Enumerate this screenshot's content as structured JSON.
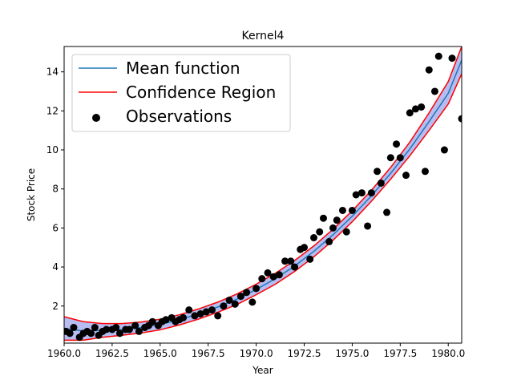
{
  "chart_data": {
    "type": "scatter",
    "title": "Kernel4",
    "xlabel": "Year",
    "ylabel": "Stock Price",
    "xlim": [
      1960.0,
      1980.7
    ],
    "ylim": [
      0.1,
      15.3
    ],
    "xticks": [
      1960.0,
      1962.5,
      1965.0,
      1967.5,
      1970.0,
      1972.5,
      1975.0,
      1977.5,
      1980.0
    ],
    "xtick_labels": [
      "1960.0",
      "1962.5",
      "1965.0",
      "1967.5",
      "1970.0",
      "1972.5",
      "1975.0",
      "1977.5",
      "1980.0"
    ],
    "yticks": [
      2,
      4,
      6,
      8,
      10,
      12,
      14
    ],
    "ytick_labels": [
      "2",
      "4",
      "6",
      "8",
      "10",
      "12",
      "14"
    ],
    "grid": false,
    "legend_position": "top-left",
    "legend": [
      {
        "label": "Mean function",
        "kind": "line",
        "color": "#1f77b4"
      },
      {
        "label": "Confidence Region",
        "kind": "line",
        "color": "#ff0000"
      },
      {
        "label": "Observations",
        "kind": "marker",
        "color": "#000000"
      }
    ],
    "colors": {
      "mean": "#1f77b4",
      "confidence_edge": "#ff0000",
      "confidence_fill": "#aab0ee",
      "observations": "#000000"
    },
    "mean_curve": {
      "x": [
        1960,
        1961,
        1962,
        1963,
        1964,
        1965,
        1966,
        1967,
        1968,
        1969,
        1970,
        1971,
        1972,
        1973,
        1974,
        1975,
        1976,
        1977,
        1978,
        1979,
        1980,
        1980.7
      ],
      "y": [
        0.85,
        0.72,
        0.75,
        0.8,
        0.9,
        1.05,
        1.3,
        1.6,
        1.95,
        2.35,
        2.85,
        3.4,
        4.05,
        4.8,
        5.65,
        6.6,
        7.65,
        8.8,
        10.05,
        11.45,
        12.9,
        14.6
      ]
    },
    "confidence_upper": {
      "x": [
        1960,
        1961,
        1962,
        1963,
        1964,
        1965,
        1966,
        1967,
        1968,
        1969,
        1970,
        1971,
        1972,
        1973,
        1974,
        1975,
        1976,
        1977,
        1978,
        1979,
        1980,
        1980.7
      ],
      "y": [
        1.45,
        1.2,
        1.1,
        1.1,
        1.18,
        1.32,
        1.55,
        1.85,
        2.2,
        2.62,
        3.12,
        3.68,
        4.33,
        5.08,
        5.93,
        6.88,
        7.93,
        9.1,
        10.4,
        11.9,
        13.5,
        15.3
      ]
    },
    "confidence_lower": {
      "x": [
        1960,
        1961,
        1962,
        1963,
        1964,
        1965,
        1966,
        1967,
        1968,
        1969,
        1970,
        1971,
        1972,
        1973,
        1974,
        1975,
        1976,
        1977,
        1978,
        1979,
        1980,
        1980.7
      ],
      "y": [
        0.25,
        0.25,
        0.4,
        0.5,
        0.62,
        0.78,
        1.03,
        1.33,
        1.68,
        2.08,
        2.58,
        3.12,
        3.77,
        4.52,
        5.37,
        6.32,
        7.37,
        8.5,
        9.7,
        11.0,
        12.35,
        13.9
      ]
    },
    "observations": {
      "x": [
        1960.1,
        1960.3,
        1960.5,
        1960.8,
        1961.0,
        1961.2,
        1961.4,
        1961.6,
        1961.8,
        1962.0,
        1962.2,
        1962.5,
        1962.7,
        1962.9,
        1963.2,
        1963.4,
        1963.7,
        1963.9,
        1964.2,
        1964.4,
        1964.6,
        1964.9,
        1965.1,
        1965.3,
        1965.6,
        1965.8,
        1966.0,
        1966.2,
        1966.5,
        1966.8,
        1967.1,
        1967.4,
        1967.7,
        1968.0,
        1968.3,
        1968.6,
        1968.9,
        1969.2,
        1969.5,
        1969.8,
        1970.0,
        1970.3,
        1970.6,
        1970.9,
        1971.2,
        1971.5,
        1971.8,
        1972.0,
        1972.3,
        1972.5,
        1972.8,
        1973.0,
        1973.3,
        1973.5,
        1973.8,
        1974.0,
        1974.2,
        1974.5,
        1974.7,
        1975.0,
        1975.2,
        1975.5,
        1975.8,
        1976.0,
        1976.3,
        1976.5,
        1976.8,
        1977.0,
        1977.3,
        1977.5,
        1977.8,
        1978.0,
        1978.3,
        1978.6,
        1978.8,
        1979.0,
        1979.3,
        1979.5,
        1979.8,
        1980.2,
        1980.7
      ],
      "y": [
        0.7,
        0.6,
        0.9,
        0.4,
        0.6,
        0.7,
        0.6,
        0.9,
        0.5,
        0.7,
        0.8,
        0.8,
        0.9,
        0.6,
        0.8,
        0.8,
        1.0,
        0.7,
        0.9,
        1.0,
        1.2,
        1.0,
        1.2,
        1.3,
        1.4,
        1.2,
        1.3,
        1.4,
        1.8,
        1.5,
        1.6,
        1.7,
        1.8,
        1.5,
        2.0,
        2.3,
        2.1,
        2.5,
        2.7,
        2.2,
        2.9,
        3.4,
        3.7,
        3.5,
        3.6,
        4.3,
        4.3,
        4.0,
        4.9,
        5.0,
        4.4,
        5.5,
        5.8,
        6.5,
        5.3,
        6.0,
        6.4,
        6.9,
        5.8,
        6.9,
        7.7,
        7.8,
        6.1,
        7.8,
        8.9,
        8.3,
        6.8,
        9.6,
        10.3,
        9.6,
        8.7,
        11.9,
        12.1,
        12.2,
        8.9,
        14.1,
        13.0,
        14.8,
        10.0,
        14.7,
        11.6
      ]
    }
  }
}
